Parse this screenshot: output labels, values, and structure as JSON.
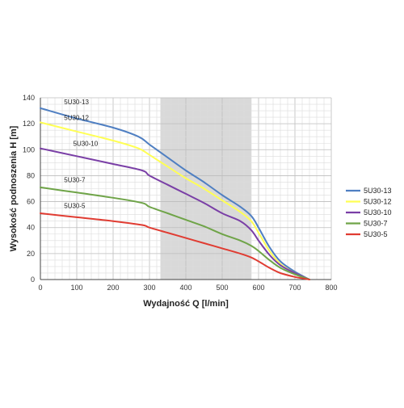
{
  "chart_data": {
    "type": "line",
    "title": "",
    "xlabel": "Wydajność Q [l/min]",
    "ylabel": "Wysokość podnoszenia H [m]",
    "xlim": [
      0,
      800
    ],
    "ylim": [
      0,
      140
    ],
    "xticks": [
      0,
      100,
      200,
      300,
      400,
      500,
      600,
      700,
      800
    ],
    "yticks": [
      0,
      20,
      40,
      60,
      80,
      100,
      120,
      140
    ],
    "x_tick_labels": [
      "0",
      "100",
      "200",
      "300",
      "400",
      "500",
      "600",
      "700",
      "800"
    ],
    "y_tick_labels": [
      "0",
      "20",
      "40",
      "60",
      "80",
      "100",
      "120",
      "140"
    ],
    "grid": true,
    "shaded_x_range": [
      330,
      580
    ],
    "legend_position": "right",
    "series": [
      {
        "name": "5U30-13",
        "color": "#4f7fc2",
        "x": [
          0,
          100,
          200,
          270,
          300,
          350,
          400,
          450,
          500,
          550,
          580,
          600,
          630,
          660,
          700,
          740
        ],
        "y": [
          132,
          124,
          117,
          110,
          104,
          94,
          84,
          75,
          65,
          56,
          49,
          40,
          25,
          14,
          6,
          0
        ]
      },
      {
        "name": "5U30-12",
        "color": "#ffff55",
        "x": [
          0,
          100,
          200,
          270,
          300,
          350,
          400,
          450,
          500,
          550,
          580,
          600,
          630,
          660,
          700,
          740
        ],
        "y": [
          121,
          114,
          107,
          101,
          96,
          87,
          78,
          70,
          61,
          52,
          45,
          36,
          22,
          12,
          5,
          0
        ]
      },
      {
        "name": "5U30-10",
        "color": "#7a3fa6",
        "x": [
          0,
          100,
          200,
          280,
          300,
          350,
          400,
          450,
          500,
          550,
          580,
          600,
          630,
          660,
          700,
          740
        ],
        "y": [
          101,
          95,
          89,
          84,
          80,
          73,
          66,
          59,
          51,
          45,
          38,
          30,
          19,
          11,
          5,
          0
        ]
      },
      {
        "name": "5U30-7",
        "color": "#6fa448",
        "x": [
          0,
          100,
          200,
          280,
          300,
          350,
          400,
          450,
          500,
          550,
          580,
          600,
          630,
          660,
          700,
          740
        ],
        "y": [
          71,
          67,
          63,
          59,
          56,
          51,
          46,
          41,
          35,
          30,
          26,
          22,
          15,
          9,
          4,
          0
        ]
      },
      {
        "name": "5U30-5",
        "color": "#e03c32",
        "x": [
          0,
          100,
          200,
          280,
          300,
          350,
          400,
          450,
          500,
          550,
          580,
          600,
          630,
          660,
          700,
          740
        ],
        "y": [
          51,
          48,
          45,
          42,
          40,
          36,
          32,
          28,
          24,
          20,
          17,
          14,
          9,
          5,
          2,
          0
        ]
      }
    ],
    "annotations": [
      {
        "text": "5U30-13",
        "x": 65,
        "y": 135
      },
      {
        "text": "5U30-12",
        "x": 65,
        "y": 123
      },
      {
        "text": "5U30-10",
        "x": 90,
        "y": 103
      },
      {
        "text": "5U30-7",
        "x": 65,
        "y": 75
      },
      {
        "text": "5U30-5",
        "x": 65,
        "y": 55
      }
    ]
  }
}
